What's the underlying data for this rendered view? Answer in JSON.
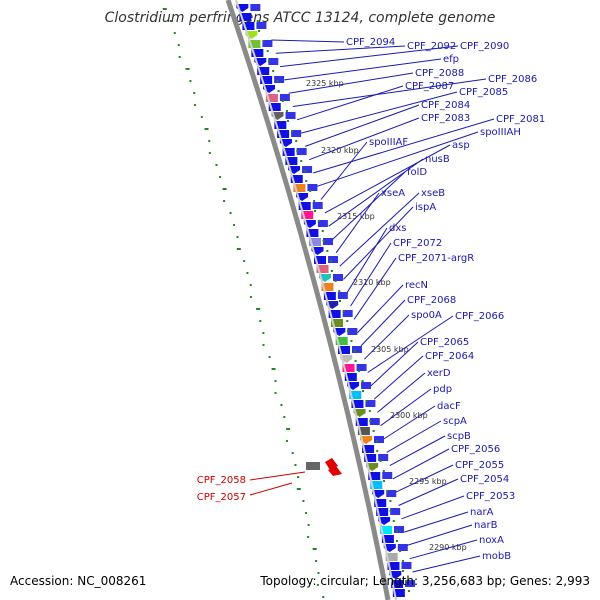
{
  "title": "Clostridium perfringens ATCC 13124, complete genome",
  "footer": {
    "accession": "Accession: NC_008261",
    "topology": "Topology: circular; Length: 3,256,683 bp; Genes: 2,993"
  },
  "colors": {
    "label_forward": "#1a1ab0",
    "label_reverse": "#cc0000",
    "backbone": "#888888",
    "gene_blue": "#1010e0",
    "gc_skew": "#228822"
  },
  "positions": [
    "2325 kbp",
    "2320 kbp",
    "2315 kbp",
    "2310 kbp",
    "2305 kbp",
    "2300 kbp",
    "2295 kbp",
    "2290 kbp"
  ],
  "genes_forward": [
    "CPF_2094",
    "CPF_2092",
    "CPF_2090",
    "efp",
    "CPF_2088",
    "CPF_2086",
    "CPF_2087",
    "CPF_2085",
    "CPF_2084",
    "CPF_2083",
    "CPF_2081",
    "spoIIIAH",
    "spoIIIAF",
    "asp",
    "nusB",
    "folD",
    "xseA",
    "xseB",
    "ispA",
    "dxs",
    "CPF_2072",
    "CPF_2071-argR",
    "recN",
    "CPF_2068",
    "spo0A",
    "CPF_2066",
    "CPF_2065",
    "CPF_2064",
    "xerD",
    "pdp",
    "dacF",
    "scpA",
    "scpB",
    "CPF_2056",
    "CPF_2055",
    "CPF_2054",
    "CPF_2053",
    "narA",
    "narB",
    "noxA",
    "mobB"
  ],
  "genes_reverse": [
    "CPF_2058",
    "CPF_2057"
  ]
}
